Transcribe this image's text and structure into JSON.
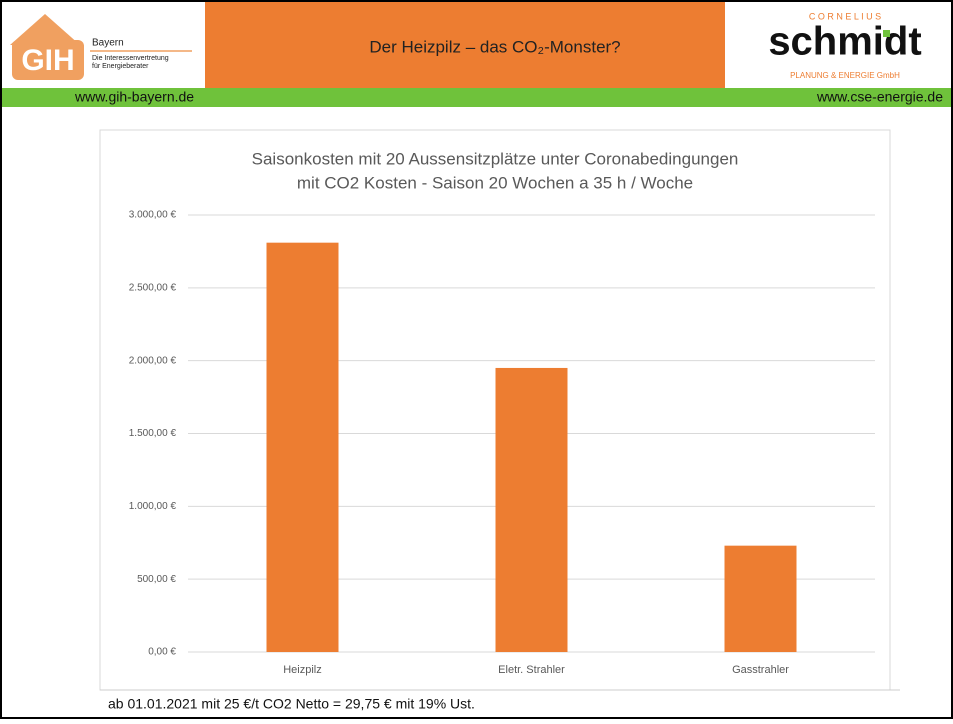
{
  "header": {
    "title": "Der Heizpilz – das CO₂-Monster?",
    "left_logo": {
      "mark": "GIH",
      "region": "Bayern",
      "line1": "Die Interessenvertretung",
      "line2": "für Energieberater"
    },
    "right_logo": {
      "top": "C O R N E L I U S",
      "name": "schmidt",
      "bottom": "PLANUNG & ENERGIE GmbH"
    },
    "left_url": "www.gih-bayern.de",
    "right_url": "www.cse-energie.de"
  },
  "chart_data": {
    "type": "bar",
    "title": [
      "Saisonkosten mit 20 Aussensitzplätze unter Coronabedingungen",
      "mit CO2 Kosten  - Saison 20 Wochen a 35 h / Woche"
    ],
    "categories": [
      "Heizpilz",
      "Eletr. Strahler",
      "Gasstrahler"
    ],
    "values": [
      2810,
      1950,
      730
    ],
    "color": "#ed7d31",
    "ylim": [
      0,
      3000
    ],
    "yticks": [
      {
        "value": 0,
        "label": "0,00 €"
      },
      {
        "value": 500,
        "label": "500,00 €"
      },
      {
        "value": 1000,
        "label": "1.000,00 €"
      },
      {
        "value": 1500,
        "label": "1.500,00 €"
      },
      {
        "value": 2000,
        "label": "2.000,00 €"
      },
      {
        "value": 2500,
        "label": "2.500,00 €"
      },
      {
        "value": 3000,
        "label": "3.000,00 €"
      }
    ],
    "grid": true
  },
  "footer": {
    "note": "ab 01.01.2021 mit 25 €/t CO2 Netto = 29,75 € mit 19% Ust."
  }
}
